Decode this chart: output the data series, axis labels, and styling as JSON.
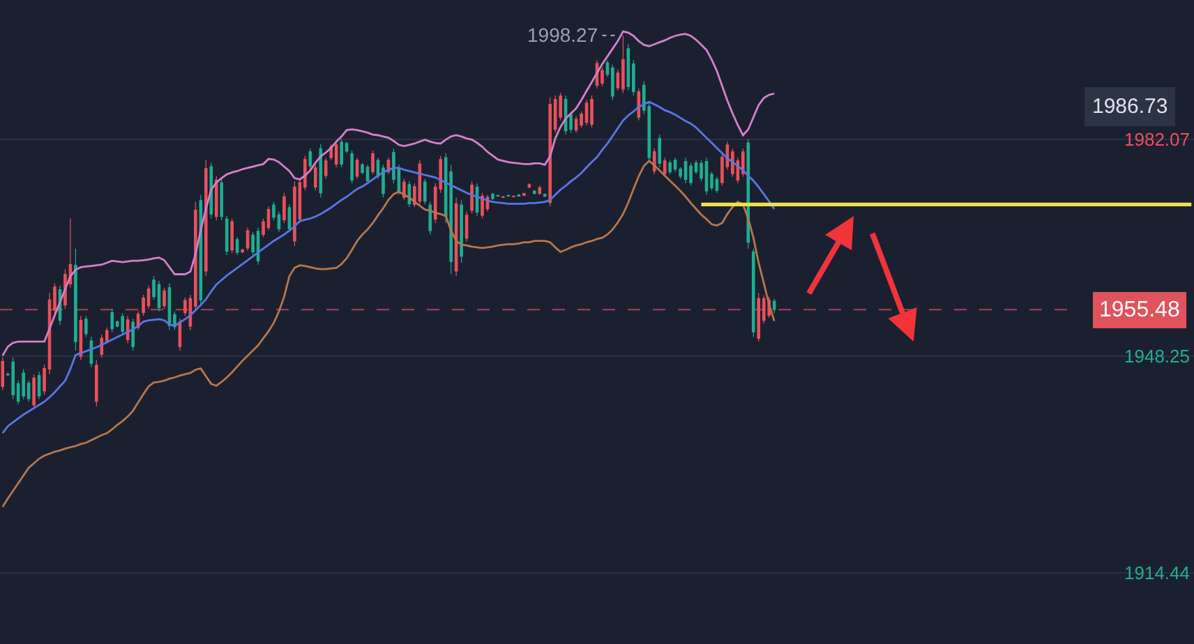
{
  "chart_data": {
    "type": "candlestick",
    "categories": [
      null,
      null,
      null,
      null,
      null,
      null,
      null,
      null,
      null,
      null,
      null,
      null,
      null,
      null,
      null,
      null,
      null,
      null,
      null,
      null,
      null,
      null,
      null,
      null,
      null,
      null,
      null,
      null,
      null,
      null,
      null,
      null,
      null,
      null,
      null,
      null,
      null,
      null,
      null,
      null,
      null,
      null,
      null,
      null,
      null,
      null,
      null,
      null,
      null,
      null,
      null,
      null,
      null,
      null,
      null,
      null,
      null,
      null,
      null,
      null,
      null,
      null,
      null,
      null,
      null,
      null,
      null,
      null,
      null,
      null,
      null,
      null,
      null,
      null,
      null,
      null,
      null,
      null,
      null,
      null,
      null,
      null,
      null,
      null,
      null,
      null,
      null,
      null,
      null,
      null,
      null,
      null,
      null,
      null,
      null,
      null,
      null,
      null,
      null,
      null,
      null,
      null,
      null,
      null,
      null,
      null,
      null,
      null,
      null,
      null,
      null,
      null,
      null,
      null,
      null,
      null,
      null,
      null,
      null,
      null,
      null,
      null,
      null,
      null,
      null,
      null,
      null,
      null,
      null,
      null,
      null,
      null,
      null,
      null,
      null,
      null,
      null,
      null,
      null,
      null,
      null,
      null,
      null,
      null,
      null,
      null,
      null,
      null,
      null,
      null,
      null,
      null,
      null,
      null,
      null,
      null,
      null,
      null,
      null,
      null,
      null,
      null,
      null,
      null,
      null,
      null,
      null,
      null,
      null,
      null,
      null,
      null,
      null,
      null,
      null,
      null,
      null,
      null,
      null,
      null,
      null,
      null,
      null,
      null,
      null,
      null,
      null,
      null,
      null,
      null,
      null,
      null,
      null,
      null,
      null,
      null,
      null,
      null,
      null,
      null,
      null,
      null,
      null,
      null,
      null,
      null,
      null,
      null,
      null,
      null,
      null,
      null,
      null,
      null,
      null,
      null,
      null,
      null,
      null,
      null,
      null,
      null,
      null,
      null,
      null,
      null,
      null,
      null,
      null
    ],
    "ohlc": [
      [
        1943.5,
        1948.0,
        1942.9,
        1947.4
      ],
      [
        1945.4,
        1945.7,
        1945.1,
        1945.3
      ],
      [
        1947.3,
        1948.0,
        1941.5,
        1942.2
      ],
      [
        1943.9,
        1944.4,
        1940.7,
        1941.2
      ],
      [
        1945.6,
        1946.2,
        1941.5,
        1942.0
      ],
      [
        1944.0,
        1944.4,
        1941.1,
        1941.6
      ],
      [
        1940.6,
        1945.4,
        1940.0,
        1944.8
      ],
      [
        1945.2,
        1945.8,
        1941.5,
        1942.0
      ],
      [
        1942.8,
        1946.9,
        1942.2,
        1946.3
      ],
      [
        1946.2,
        1958.1,
        1945.4,
        1957.0
      ],
      [
        1955.4,
        1959.6,
        1954.9,
        1959.0
      ],
      [
        1958.6,
        1959.2,
        1953.1,
        1953.8
      ],
      [
        1956.2,
        1961.8,
        1955.6,
        1961.0
      ],
      [
        1959.5,
        1969.7,
        1958.9,
        1962.5
      ],
      [
        1962.4,
        1965.0,
        1949.1,
        1950.5
      ],
      [
        1948.2,
        1954.5,
        1947.6,
        1953.8
      ],
      [
        1954.0,
        1954.5,
        1951.2,
        1951.7
      ],
      [
        1950.6,
        1951.2,
        1946.5,
        1947.1
      ],
      [
        1941.2,
        1947.6,
        1940.4,
        1946.8
      ],
      [
        1948.5,
        1951.6,
        1948.0,
        1951.0
      ],
      [
        1950.6,
        1952.7,
        1950.2,
        1952.2
      ],
      [
        1955.0,
        1955.6,
        1952.0,
        1952.5
      ],
      [
        1953.6,
        1953.8,
        1952.7,
        1952.9
      ],
      [
        1954.4,
        1954.9,
        1951.6,
        1952.1
      ],
      [
        1950.8,
        1954.5,
        1950.2,
        1953.9
      ],
      [
        1953.5,
        1954.1,
        1949.1,
        1949.7
      ],
      [
        1952.7,
        1955.2,
        1952.3,
        1954.8
      ],
      [
        1955.0,
        1957.8,
        1954.5,
        1957.3
      ],
      [
        1956.1,
        1959.2,
        1955.6,
        1958.7
      ],
      [
        1960.1,
        1960.7,
        1957.0,
        1957.5
      ],
      [
        1959.4,
        1960.0,
        1955.2,
        1955.8
      ],
      [
        1956.1,
        1958.9,
        1955.6,
        1958.4
      ],
      [
        1958.9,
        1959.6,
        1952.3,
        1953.0
      ],
      [
        1954.7,
        1955.2,
        1952.3,
        1952.8
      ],
      [
        1949.7,
        1954.1,
        1949.1,
        1953.5
      ],
      [
        1955.0,
        1957.4,
        1954.5,
        1956.9
      ],
      [
        1952.9,
        1957.8,
        1952.3,
        1957.2
      ],
      [
        1956.0,
        1972.3,
        1955.2,
        1971.0
      ],
      [
        1972.5,
        1973.4,
        1956.0,
        1957.0
      ],
      [
        1961.5,
        1978.8,
        1960.7,
        1977.5
      ],
      [
        1977.8,
        1978.4,
        1969.7,
        1970.4
      ],
      [
        1970.0,
        1976.3,
        1969.4,
        1975.7
      ],
      [
        1975.3,
        1975.9,
        1969.4,
        1970.0
      ],
      [
        1969.6,
        1970.1,
        1964.0,
        1964.6
      ],
      [
        1964.8,
        1969.7,
        1964.3,
        1969.2
      ],
      [
        1966.4,
        1966.8,
        1964.0,
        1964.4
      ],
      [
        1964.5,
        1965.0,
        1964.3,
        1964.8
      ],
      [
        1965.1,
        1968.3,
        1964.7,
        1967.8
      ],
      [
        1967.1,
        1967.6,
        1964.0,
        1964.5
      ],
      [
        1967.7,
        1968.3,
        1962.5,
        1963.1
      ],
      [
        1967.2,
        1969.7,
        1966.8,
        1969.2
      ],
      [
        1968.3,
        1971.6,
        1967.9,
        1971.1
      ],
      [
        1971.8,
        1972.3,
        1969.4,
        1969.9
      ],
      [
        1970.3,
        1970.8,
        1967.6,
        1968.1
      ],
      [
        1969.5,
        1973.7,
        1969.0,
        1973.1
      ],
      [
        1971.4,
        1971.9,
        1967.6,
        1968.1
      ],
      [
        1966.2,
        1975.5,
        1965.4,
        1974.6
      ],
      [
        1969.6,
        1975.9,
        1969.0,
        1975.3
      ],
      [
        1974.6,
        1979.5,
        1974.1,
        1978.9
      ],
      [
        1980.1,
        1980.6,
        1977.4,
        1977.9
      ],
      [
        1974.6,
        1978.1,
        1974.1,
        1977.6
      ],
      [
        1980.6,
        1981.3,
        1973.0,
        1973.7
      ],
      [
        1976.4,
        1979.2,
        1975.9,
        1978.7
      ],
      [
        1979.2,
        1981.3,
        1978.8,
        1980.9
      ],
      [
        1978.2,
        1981.7,
        1977.7,
        1981.2
      ],
      [
        1981.6,
        1982.1,
        1977.7,
        1978.2
      ],
      [
        1981.4,
        1981.7,
        1979.9,
        1980.2
      ],
      [
        1979.8,
        1980.3,
        1975.2,
        1975.7
      ],
      [
        1976.3,
        1979.2,
        1975.9,
        1978.8
      ],
      [
        1978.1,
        1978.4,
        1976.6,
        1976.9
      ],
      [
        1977.7,
        1978.1,
        1975.2,
        1975.6
      ],
      [
        1977.0,
        1980.3,
        1976.6,
        1979.8
      ],
      [
        1978.8,
        1979.2,
        1975.9,
        1976.3
      ],
      [
        1977.6,
        1978.1,
        1973.0,
        1973.6
      ],
      [
        1977.0,
        1979.2,
        1976.6,
        1978.8
      ],
      [
        1980.0,
        1980.6,
        1975.2,
        1975.8
      ],
      [
        1977.6,
        1978.1,
        1973.4,
        1973.9
      ],
      [
        1973.0,
        1975.9,
        1972.6,
        1975.4
      ],
      [
        1975.0,
        1975.5,
        1971.5,
        1972.0
      ],
      [
        1971.9,
        1975.2,
        1971.5,
        1974.7
      ],
      [
        1972.4,
        1978.8,
        1971.9,
        1978.2
      ],
      [
        1975.4,
        1975.9,
        1971.9,
        1972.4
      ],
      [
        1971.8,
        1972.3,
        1967.2,
        1967.8
      ],
      [
        1969.6,
        1975.2,
        1969.0,
        1974.6
      ],
      [
        1974.3,
        1979.5,
        1973.7,
        1978.9
      ],
      [
        1979.2,
        1979.9,
        1969.0,
        1970.0
      ],
      [
        1977.0,
        1978.1,
        1961.0,
        1963.0
      ],
      [
        1961.5,
        1973.0,
        1960.7,
        1972.0
      ],
      [
        1971.8,
        1972.6,
        1962.8,
        1963.8
      ],
      [
        1966.6,
        1970.8,
        1966.1,
        1970.2
      ],
      [
        1971.0,
        1975.5,
        1970.5,
        1974.9
      ],
      [
        1974.6,
        1975.2,
        1970.1,
        1970.7
      ],
      [
        1970.2,
        1973.7,
        1969.7,
        1973.2
      ],
      [
        1971.2,
        1973.4,
        1970.8,
        1973.0
      ],
      [
        1973.5,
        1973.7,
        1972.6,
        1972.8
      ],
      [
        1973.3,
        1973.4,
        1973.1,
        1973.2
      ],
      [
        1973.0,
        1973.2,
        1972.9,
        1973.1
      ],
      [
        1973.3,
        1973.4,
        1973.1,
        1973.2
      ],
      [
        1973.1,
        1973.3,
        1973.0,
        1973.2
      ],
      [
        1973.4,
        1973.5,
        1973.1,
        1973.2
      ],
      [
        1973.3,
        1973.7,
        1973.2,
        1973.6
      ],
      [
        1974.6,
        1975.2,
        1974.4,
        1975.0
      ],
      [
        1974.0,
        1974.1,
        1973.5,
        1973.6
      ],
      [
        1973.6,
        1974.8,
        1973.4,
        1974.5
      ],
      [
        1973.5,
        1973.6,
        1973.1,
        1973.2
      ],
      [
        1972.2,
        1988.6,
        1971.6,
        1987.5
      ],
      [
        1983.6,
        1988.9,
        1983.1,
        1988.3
      ],
      [
        1985.5,
        1989.3,
        1985.0,
        1988.8
      ],
      [
        1988.3,
        1988.9,
        1982.8,
        1983.4
      ],
      [
        1985.9,
        1986.4,
        1983.1,
        1983.6
      ],
      [
        1983.5,
        1985.7,
        1983.1,
        1985.2
      ],
      [
        1984.3,
        1986.4,
        1983.9,
        1986.0
      ],
      [
        1984.7,
        1988.2,
        1984.2,
        1987.7
      ],
      [
        1984.4,
        1988.9,
        1983.9,
        1988.3
      ],
      [
        1990.5,
        1994.4,
        1990.0,
        1993.9
      ],
      [
        1990.8,
        1993.3,
        1990.4,
        1992.8
      ],
      [
        1994.0,
        1994.4,
        1991.8,
        1992.2
      ],
      [
        1993.2,
        1993.7,
        1988.2,
        1988.8
      ],
      [
        1990.1,
        1992.9,
        1989.7,
        1992.4
      ],
      [
        1989.9,
        1998.27,
        1989.3,
        1994.5
      ],
      [
        1996.2,
        1996.9,
        1989.7,
        1990.3
      ],
      [
        1993.8,
        1994.4,
        1988.9,
        1989.5
      ],
      [
        1985.5,
        1990.0,
        1985.0,
        1989.5
      ],
      [
        1990.5,
        1991.1,
        1986.0,
        1986.6
      ],
      [
        1987.2,
        1987.8,
        1978.4,
        1979.2
      ],
      [
        1977.1,
        1980.6,
        1976.6,
        1980.1
      ],
      [
        1982.2,
        1982.8,
        1977.7,
        1978.3
      ],
      [
        1976.7,
        1979.2,
        1976.2,
        1978.7
      ],
      [
        1978.4,
        1978.8,
        1976.6,
        1977.0
      ],
      [
        1978.8,
        1979.2,
        1977.0,
        1977.4
      ],
      [
        1977.4,
        1977.7,
        1975.9,
        1976.3
      ],
      [
        1978.6,
        1979.2,
        1975.2,
        1975.8
      ],
      [
        1977.9,
        1978.4,
        1974.8,
        1975.3
      ],
      [
        1978.4,
        1978.8,
        1976.6,
        1977.0
      ],
      [
        1978.3,
        1978.8,
        1975.5,
        1976.0
      ],
      [
        1978.6,
        1979.2,
        1973.4,
        1974.0
      ],
      [
        1976.6,
        1977.0,
        1974.1,
        1974.5
      ],
      [
        1975.8,
        1976.2,
        1973.7,
        1974.1
      ],
      [
        1975.3,
        1979.9,
        1974.8,
        1979.3
      ],
      [
        1977.8,
        1981.7,
        1977.3,
        1981.2
      ],
      [
        1976.7,
        1980.6,
        1976.2,
        1980.1
      ],
      [
        1975.7,
        1979.2,
        1975.2,
        1978.7
      ],
      [
        1976.7,
        1980.6,
        1976.2,
        1980.1
      ],
      [
        1981.5,
        1982.1,
        1965.0,
        1966.0
      ],
      [
        1964.5,
        1965.0,
        1951.2,
        1952.0
      ],
      [
        1951.0,
        1958.1,
        1950.5,
        1957.2
      ],
      [
        1953.8,
        1957.7,
        1953.3,
        1957.2
      ],
      [
        1954.6,
        1957.5,
        1954.2,
        1957.0
      ],
      [
        1956.8,
        1957.2,
        1954.9,
        1955.48
      ],
      null,
      null,
      null,
      null,
      null,
      null,
      null,
      null,
      null,
      null,
      null,
      null,
      null,
      null,
      null,
      null,
      null,
      null,
      null,
      null,
      null,
      null,
      null,
      null,
      null,
      null,
      null,
      null,
      null,
      null,
      null,
      null,
      null,
      null,
      null,
      null,
      null,
      null,
      null,
      null,
      null,
      null,
      null,
      null,
      null,
      null,
      null,
      null,
      null,
      null,
      null,
      null,
      null,
      null,
      null,
      null,
      null,
      null,
      null,
      null,
      null,
      null,
      null,
      null,
      null,
      null,
      null,
      null,
      null,
      null,
      null,
      null,
      null,
      null,
      null,
      null,
      null,
      null,
      null,
      null
    ],
    "series": [
      {
        "type": "line",
        "color": "#d57fcc",
        "values": [
          1948.3,
          1949.7,
          1950.3,
          1950.5,
          1950.5,
          1950.5,
          1950.5,
          1950.5,
          1950.5,
          1952.5,
          1954.6,
          1956.6,
          1958.7,
          1960.7,
          1961.7,
          1962.1,
          1962.2,
          1962.3,
          1962.4,
          1962.5,
          1962.8,
          1963.1,
          1963.0,
          1962.9,
          1963.0,
          1963.1,
          1963.1,
          1963.2,
          1963.3,
          1963.5,
          1963.6,
          1963.2,
          1962.1,
          1961.0,
          1961.0,
          1961.0,
          1961.4,
          1964.1,
          1967.9,
          1971.2,
          1974.2,
          1975.3,
          1976.0,
          1976.6,
          1976.9,
          1977.1,
          1977.4,
          1977.6,
          1977.8,
          1978.0,
          1978.2,
          1979.0,
          1978.9,
          1978.5,
          1977.8,
          1977.1,
          1976.0,
          1975.8,
          1976.4,
          1977.2,
          1978.4,
          1979.4,
          1980.0,
          1980.7,
          1981.7,
          1982.5,
          1983.5,
          1983.6,
          1983.5,
          1983.3,
          1983.1,
          1982.8,
          1982.7,
          1982.5,
          1982.3,
          1981.8,
          1981.2,
          1981.0,
          1981.2,
          1981.4,
          1981.7,
          1982.0,
          1981.7,
          1981.5,
          1981.4,
          1982.0,
          1982.5,
          1982.7,
          1982.5,
          1982.2,
          1982.0,
          1981.5,
          1980.9,
          1980.1,
          1979.5,
          1978.9,
          1978.7,
          1978.5,
          1978.4,
          1978.3,
          1978.2,
          1978.2,
          1978.3,
          1978.3,
          1978.1,
          1979.4,
          1982.2,
          1984.0,
          1985.3,
          1986.1,
          1986.9,
          1988.2,
          1989.6,
          1991.0,
          1992.4,
          1993.8,
          1995.0,
          1996.2,
          1997.4,
          1998.9,
          1998.7,
          1998.2,
          1997.4,
          1996.8,
          1996.6,
          1996.9,
          1997.2,
          1997.5,
          1997.9,
          1998.2,
          1998.4,
          1998.5,
          1998.2,
          1997.6,
          1996.8,
          1996.0,
          1994.5,
          1992.7,
          1990.4,
          1988.1,
          1986.1,
          1984.3,
          1982.7,
          1983.6,
          1985.5,
          1987.4,
          1988.5,
          1989.0,
          1989.2,
          null,
          null,
          null,
          null,
          null,
          null,
          null,
          null,
          null,
          null,
          null,
          null,
          null,
          null,
          null,
          null,
          null,
          null,
          null,
          null,
          null,
          null,
          null,
          null,
          null,
          null,
          null,
          null,
          null,
          null,
          null,
          null,
          null,
          null,
          null,
          null,
          null,
          null,
          null,
          null,
          null,
          null,
          null,
          null,
          null,
          null,
          null,
          null,
          null,
          null,
          null,
          null,
          null,
          null,
          null,
          null,
          null,
          null,
          null,
          null,
          null,
          null,
          null,
          null,
          null,
          null,
          null,
          null,
          null,
          null,
          null,
          null,
          null,
          null,
          null,
          null,
          null,
          null,
          null,
          null
        ]
      },
      {
        "type": "line",
        "color": "#5877e4",
        "values": [
          1936.2,
          1937.3,
          1937.9,
          1938.5,
          1939.1,
          1939.6,
          1940.1,
          1940.6,
          1941.1,
          1941.8,
          1942.6,
          1943.5,
          1944.4,
          1946.2,
          1948.4,
          1948.7,
          1949.0,
          1949.3,
          1949.6,
          1950.0,
          1950.4,
          1950.8,
          1951.2,
          1951.6,
          1952.0,
          1952.4,
          1952.9,
          1953.6,
          1953.8,
          1953.9,
          1954.0,
          1953.8,
          1953.2,
          1952.9,
          1953.5,
          1954.0,
          1954.6,
          1955.4,
          1956.2,
          1957.1,
          1958.3,
          1959.4,
          1960.1,
          1960.8,
          1961.4,
          1962.0,
          1962.6,
          1963.2,
          1963.8,
          1964.4,
          1965.0,
          1965.6,
          1966.2,
          1966.7,
          1967.2,
          1967.8,
          1968.5,
          1969.3,
          1969.5,
          1969.7,
          1970.0,
          1970.4,
          1970.9,
          1971.4,
          1972.0,
          1972.6,
          1973.1,
          1973.7,
          1974.3,
          1974.7,
          1975.2,
          1975.8,
          1976.4,
          1976.9,
          1977.3,
          1977.6,
          1977.6,
          1977.3,
          1977.1,
          1976.9,
          1976.7,
          1976.5,
          1976.3,
          1976.1,
          1975.7,
          1975.3,
          1974.9,
          1974.5,
          1974.1,
          1973.7,
          1973.4,
          1973.1,
          1972.8,
          1972.5,
          1972.3,
          1972.2,
          1972.1,
          1972.0,
          1972.0,
          1972.0,
          1972.0,
          1972.1,
          1972.1,
          1972.2,
          1972.3,
          1972.6,
          1973.4,
          1974.2,
          1974.8,
          1975.5,
          1976.1,
          1976.8,
          1977.7,
          1978.5,
          1979.3,
          1980.4,
          1981.4,
          1982.6,
          1983.8,
          1985.0,
          1985.8,
          1986.4,
          1987.1,
          1987.5,
          1987.9,
          1987.5,
          1987.1,
          1986.6,
          1986.3,
          1985.9,
          1985.4,
          1984.9,
          1984.5,
          1983.9,
          1983.1,
          1982.3,
          1981.5,
          1980.7,
          1979.9,
          1979.1,
          1978.5,
          1977.9,
          1977.2,
          1976.4,
          1975.6,
          1974.6,
          1973.5,
          1972.4,
          1971.2,
          null,
          null,
          null,
          null,
          null,
          null,
          null,
          null,
          null,
          null,
          null,
          null,
          null,
          null,
          null,
          null,
          null,
          null,
          null,
          null,
          null,
          null,
          null,
          null,
          null,
          null,
          null,
          null,
          null,
          null,
          null,
          null,
          null,
          null,
          null,
          null,
          null,
          null,
          null,
          null,
          null,
          null,
          null,
          null,
          null,
          null,
          null,
          null,
          null,
          null,
          null,
          null,
          null,
          null,
          null,
          null,
          null,
          null,
          null,
          null,
          null,
          null,
          null,
          null,
          null,
          null,
          null,
          null,
          null,
          null,
          null,
          null,
          null,
          null,
          null,
          null,
          null,
          null,
          null,
          null
        ]
      },
      {
        "type": "line",
        "color": "#b8764b",
        "values": [
          1924.7,
          1926.0,
          1927.2,
          1928.4,
          1929.6,
          1930.8,
          1931.5,
          1932.2,
          1932.7,
          1933.0,
          1933.3,
          1933.5,
          1933.8,
          1934.0,
          1934.2,
          1934.5,
          1934.7,
          1935.1,
          1935.5,
          1935.9,
          1936.2,
          1936.8,
          1937.5,
          1938.1,
          1938.8,
          1939.7,
          1941.0,
          1942.3,
          1943.5,
          1944.1,
          1944.2,
          1944.4,
          1944.7,
          1944.9,
          1945.2,
          1945.4,
          1945.6,
          1946.1,
          1946.3,
          1945.1,
          1943.9,
          1943.6,
          1944.2,
          1944.9,
          1945.7,
          1946.6,
          1947.5,
          1948.3,
          1949.1,
          1949.9,
          1951.0,
          1952.1,
          1953.4,
          1955.2,
          1957.5,
          1960.7,
          1962.0,
          1962.4,
          1962.3,
          1962.1,
          1961.9,
          1961.8,
          1961.8,
          1961.9,
          1962.0,
          1962.6,
          1963.5,
          1964.8,
          1966.2,
          1967.2,
          1968.0,
          1969.0,
          1970.2,
          1971.3,
          1972.6,
          1973.5,
          1973.9,
          1973.4,
          1973.0,
          1972.3,
          1971.7,
          1971.1,
          1970.9,
          1970.6,
          1970.4,
          1970.1,
          1967.8,
          1966.2,
          1965.6,
          1965.5,
          1965.3,
          1965.2,
          1965.1,
          1965.2,
          1965.3,
          1965.5,
          1965.6,
          1965.7,
          1965.7,
          1965.8,
          1966.0,
          1966.0,
          1966.2,
          1966.2,
          1966.2,
          1966.0,
          1965.2,
          1964.5,
          1964.8,
          1965.2,
          1965.5,
          1965.7,
          1966.0,
          1966.2,
          1966.5,
          1966.7,
          1967.2,
          1968.0,
          1969.1,
          1970.4,
          1972.2,
          1974.3,
          1976.3,
          1977.9,
          1978.7,
          1978.0,
          1977.2,
          1976.4,
          1975.6,
          1974.8,
          1974.0,
          1973.1,
          1972.1,
          1971.2,
          1970.3,
          1969.6,
          1968.8,
          1968.6,
          1969.0,
          1970.4,
          1971.5,
          1972.3,
          1971.9,
          1969.7,
          1966.7,
          1962.8,
          1959.6,
          1956.3,
          1953.7,
          null,
          null,
          null,
          null,
          null,
          null,
          null,
          null,
          null,
          null,
          null,
          null,
          null,
          null,
          null,
          null,
          null,
          null,
          null,
          null,
          null,
          null,
          null,
          null,
          null,
          null,
          null,
          null,
          null,
          null,
          null,
          null,
          null,
          null,
          null,
          null,
          null,
          null,
          null,
          null,
          null,
          null,
          null,
          null,
          null,
          null,
          null,
          null,
          null,
          null,
          null,
          null,
          null,
          null,
          null,
          null,
          null,
          null,
          null,
          null,
          null,
          null,
          null,
          null,
          null,
          null,
          null,
          null,
          null,
          null,
          null,
          null,
          null,
          null,
          null,
          null,
          null,
          null,
          null,
          null
        ]
      },
      {
        "type": "line",
        "color": "#f0e04a",
        "values": [
          null,
          null,
          null,
          null,
          null,
          null,
          null,
          null,
          null,
          null,
          null,
          null,
          null,
          null,
          null,
          null,
          null,
          null,
          null,
          null,
          null,
          null,
          null,
          null,
          null,
          null,
          null,
          null,
          null,
          null,
          null,
          null,
          null,
          null,
          null,
          null,
          null,
          null,
          null,
          null,
          null,
          null,
          null,
          null,
          null,
          null,
          null,
          null,
          null,
          null,
          null,
          null,
          null,
          null,
          null,
          null,
          null,
          null,
          null,
          null,
          null,
          null,
          null,
          null,
          null,
          null,
          null,
          null,
          null,
          null,
          null,
          null,
          null,
          null,
          null,
          null,
          null,
          null,
          null,
          null,
          null,
          null,
          null,
          null,
          null,
          null,
          null,
          null,
          null,
          null,
          null,
          null,
          null,
          null,
          null,
          null,
          null,
          null,
          null,
          null,
          null,
          null,
          null,
          null,
          null,
          null,
          null,
          null,
          null,
          null,
          null,
          null,
          null,
          null,
          null,
          null,
          null,
          null,
          null,
          null,
          null,
          null,
          null,
          null,
          null,
          null,
          null,
          null,
          null,
          null,
          null,
          null,
          null,
          null,
          1971.9,
          1971.9,
          1971.9,
          1971.9,
          1971.9,
          1971.9,
          1971.9,
          1971.9,
          1971.9,
          1971.9,
          1971.9,
          1971.9,
          1971.9,
          1971.9,
          1971.9,
          1971.9,
          1971.9,
          1971.9,
          1971.9,
          1971.9,
          1971.9,
          1971.9,
          1971.9,
          1971.9,
          1971.9,
          1971.9,
          1971.9,
          1971.9,
          1971.9,
          1971.9,
          1971.9,
          1971.9,
          1971.9,
          1971.9,
          1971.9,
          1971.9,
          1971.9,
          1971.9,
          1971.9,
          1971.9,
          1971.9,
          1971.9,
          1971.9,
          1971.9,
          1971.9,
          1971.9,
          1971.9,
          1971.9,
          1971.9,
          1971.9,
          1971.9,
          1971.9,
          1971.9,
          1971.9,
          1971.9,
          1971.9,
          1971.9,
          1971.9,
          1971.9,
          1971.9,
          1971.9,
          1971.9,
          1971.9,
          1971.9,
          1971.9,
          1971.9,
          1971.9,
          1971.9,
          1971.9,
          1971.9,
          1971.9,
          1971.9,
          1971.9,
          1971.9,
          1971.9,
          1971.9,
          1971.9,
          1971.9,
          1971.9,
          1971.9,
          1971.9,
          1971.9,
          1971.9,
          1971.9,
          1971.9,
          1971.9,
          1971.9,
          1971.9,
          1971.9,
          1971.9,
          1971.9,
          1971.9,
          1971.9,
          1971.9,
          1971.9
        ]
      }
    ],
    "ylim": [
      1903.3,
      2003.8
    ],
    "yticks": [
      1914.44,
      1948.25,
      1982.07
    ],
    "grid": "y",
    "tick_labels": "y",
    "ref_lines": [
      {
        "axis": "y",
        "value": 1955.48,
        "label": "1955.48",
        "color": "#e0525c",
        "line_style": "dashed"
      }
    ],
    "annotations": [
      "1998.27",
      "1986.73"
    ]
  }
}
